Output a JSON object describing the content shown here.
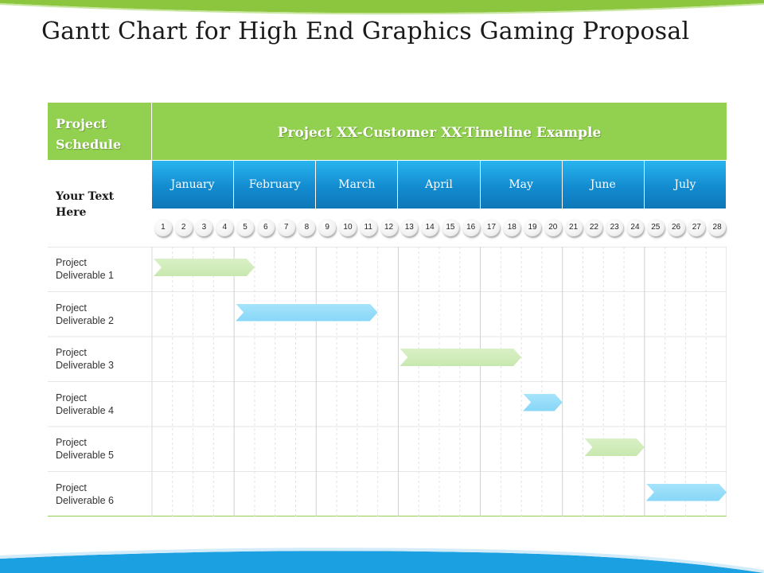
{
  "title": "Gantt Chart for High End Graphics Gaming Proposal",
  "header": {
    "schedule_label": "Project Schedule",
    "timeline_title": "Project XX-Customer XX-Timeline Example"
  },
  "side_label": "Your Text Here",
  "months": [
    "January",
    "February",
    "March",
    "April",
    "May",
    "June",
    "July"
  ],
  "days": [
    "1",
    "2",
    "3",
    "4",
    "5",
    "6",
    "7",
    "8",
    "9",
    "10",
    "11",
    "12",
    "13",
    "14",
    "15",
    "16",
    "17",
    "18",
    "19",
    "20",
    "21",
    "22",
    "23",
    "24",
    "25",
    "26",
    "27",
    "28"
  ],
  "rows": [
    {
      "label": "Project Deliverable 1",
      "start_day": 1,
      "end_day": 5,
      "color": "green"
    },
    {
      "label": "Project Deliverable 2",
      "start_day": 5,
      "end_day": 11,
      "color": "blue"
    },
    {
      "label": "Project Deliverable 3",
      "start_day": 13,
      "end_day": 18,
      "color": "green"
    },
    {
      "label": "Project Deliverable 4",
      "start_day": 19,
      "end_day": 20,
      "color": "blue"
    },
    {
      "label": "Project Deliverable 5",
      "start_day": 22,
      "end_day": 24,
      "color": "green"
    },
    {
      "label": "Project Deliverable 6",
      "start_day": 25,
      "end_day": 28,
      "color": "blue"
    }
  ],
  "colors": {
    "header_green": "#92d050",
    "month_blue": "#138bd0",
    "bar_green": "#c8e8b0",
    "bar_blue": "#86d6f7"
  }
}
